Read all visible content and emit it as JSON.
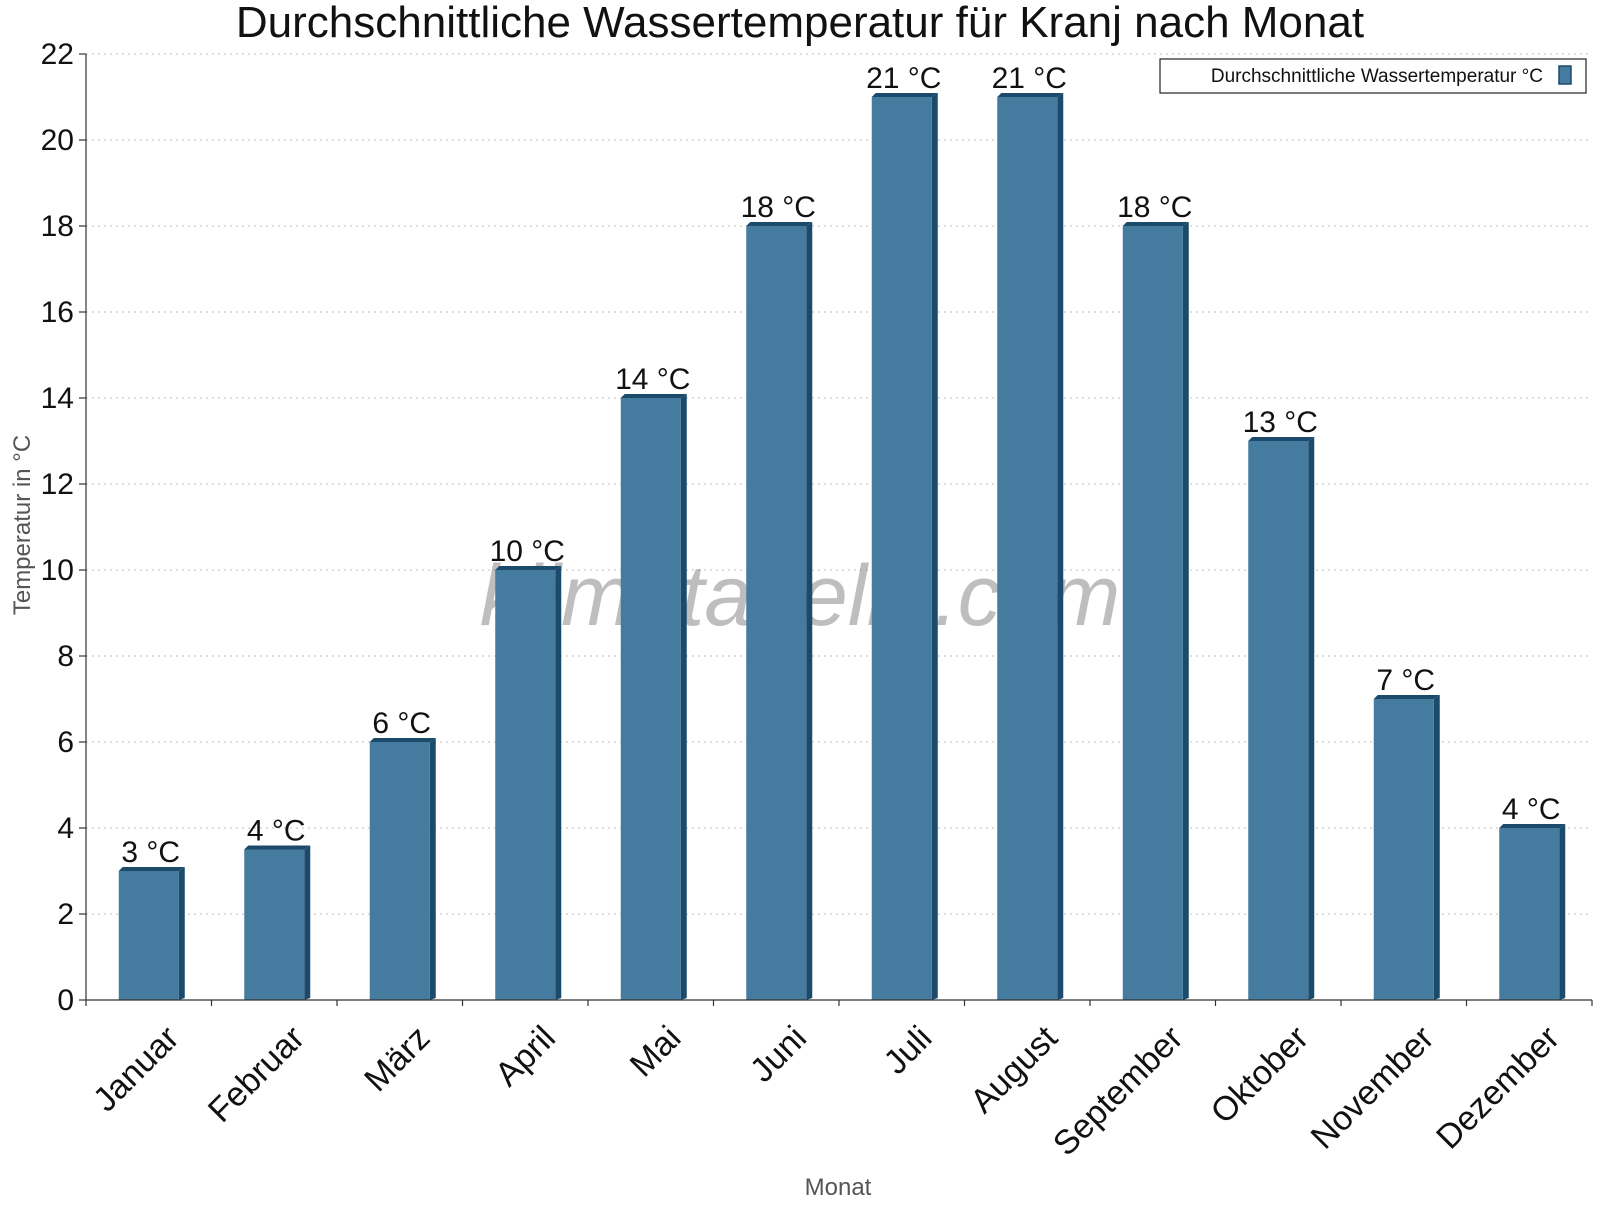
{
  "chart_data": {
    "type": "bar",
    "title": "Durchschnittliche Wassertemperatur für Kranj nach Monat",
    "xlabel": "Monat",
    "ylabel": "Temperatur in °C",
    "categories": [
      "Januar",
      "Februar",
      "März",
      "April",
      "Mai",
      "Juni",
      "Juli",
      "August",
      "September",
      "Oktober",
      "November",
      "Dezember"
    ],
    "series": [
      {
        "name": "Durchschnittliche Wassertemperatur °C",
        "values": [
          3,
          3.5,
          6,
          10,
          14,
          18,
          21,
          21,
          18,
          13,
          7,
          4
        ],
        "labels": [
          "3 °C",
          "4 °C",
          "6 °C",
          "10 °C",
          "14 °C",
          "18 °C",
          "21 °C",
          "21 °C",
          "18 °C",
          "13 °C",
          "7 °C",
          "4 °C"
        ],
        "color": "#447b9e",
        "edge_color": "#1b4a6b"
      }
    ],
    "ylim": [
      0,
      22
    ],
    "yticks": [
      0,
      2,
      4,
      6,
      8,
      10,
      12,
      14,
      16,
      18,
      20,
      22
    ],
    "grid": true,
    "legend": "top-right",
    "watermark": "klimatabelle.com"
  }
}
